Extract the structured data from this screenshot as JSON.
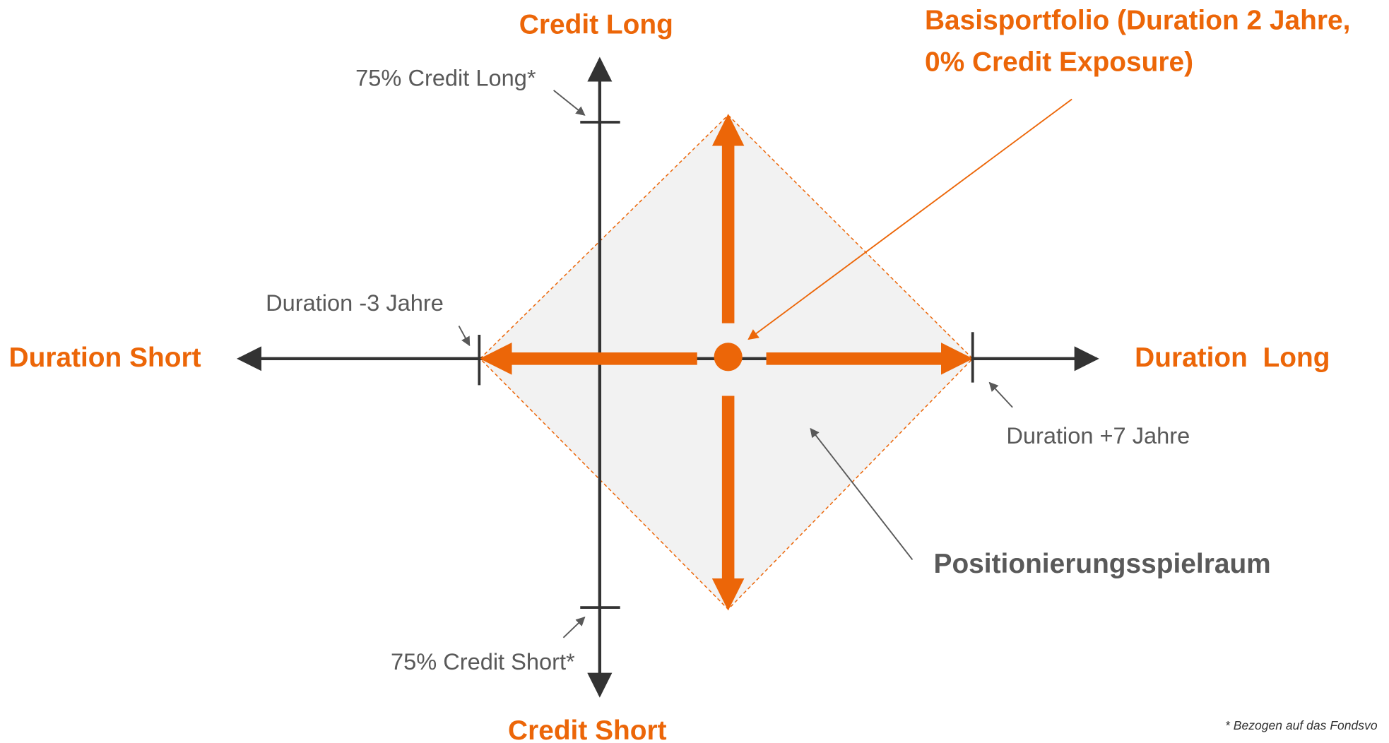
{
  "title": "Credit Long",
  "bottom_label": "Credit Short",
  "left_label": "Duration Short",
  "right_label": "Duration  Long",
  "callout": {
    "line1": "Basisportfolio (Duration 2 Jahre,",
    "line2": "0% Credit Exposure)"
  },
  "tick_labels": {
    "credit_long": "75% Credit Long*",
    "credit_short": "75% Credit Short*",
    "duration_min": "Duration -3 Jahre",
    "duration_max": "Duration +7 Jahre"
  },
  "area_label": "Positionierungsspielraum",
  "footnote": "* Bezogen auf das Fondsvo"
}
